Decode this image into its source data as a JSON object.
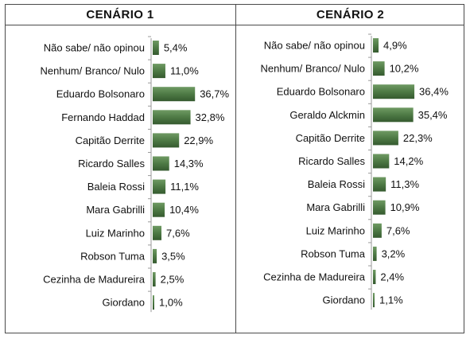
{
  "chart_data": [
    {
      "type": "bar",
      "title": "CENÁRIO 1",
      "categories": [
        "Não sabe/ não opinou",
        "Nenhum/ Branco/ Nulo",
        "Eduardo Bolsonaro",
        "Fernando Haddad",
        "Capitão Derrite",
        "Ricardo Salles",
        "Baleia Rossi",
        "Mara Gabrilli",
        "Luiz Marinho",
        "Robson Tuma",
        "Cezinha de Madureira",
        "Giordano"
      ],
      "values": [
        5.4,
        11.0,
        36.7,
        32.8,
        22.9,
        14.3,
        11.1,
        10.4,
        7.6,
        3.5,
        2.5,
        1.0
      ],
      "value_labels": [
        "5,4%",
        "11,0%",
        "36,7%",
        "32,8%",
        "22,9%",
        "14,3%",
        "11,1%",
        "10,4%",
        "7,6%",
        "3,5%",
        "2,5%",
        "1,0%"
      ],
      "orientation": "horizontal",
      "bar_color": "#4e7a45"
    },
    {
      "type": "bar",
      "title": "CENÁRIO 2",
      "categories": [
        "Não sabe/ não opinou",
        "Nenhum/ Branco/ Nulo",
        "Eduardo Bolsonaro",
        "Geraldo Alckmin",
        "Capitão Derrite",
        "Ricardo Salles",
        "Baleia Rossi",
        "Mara Gabrilli",
        "Luiz Marinho",
        "Robson Tuma",
        "Cezinha de Madureira",
        "Giordano"
      ],
      "values": [
        4.9,
        10.2,
        36.4,
        35.4,
        22.3,
        14.2,
        11.3,
        10.9,
        7.6,
        3.2,
        2.4,
        1.1
      ],
      "value_labels": [
        "4,9%",
        "10,2%",
        "36,4%",
        "35,4%",
        "22,3%",
        "14,2%",
        "11,3%",
        "10,9%",
        "7,6%",
        "3,2%",
        "2,4%",
        "1,1%"
      ],
      "orientation": "horizontal",
      "bar_color": "#4e7a45"
    }
  ]
}
